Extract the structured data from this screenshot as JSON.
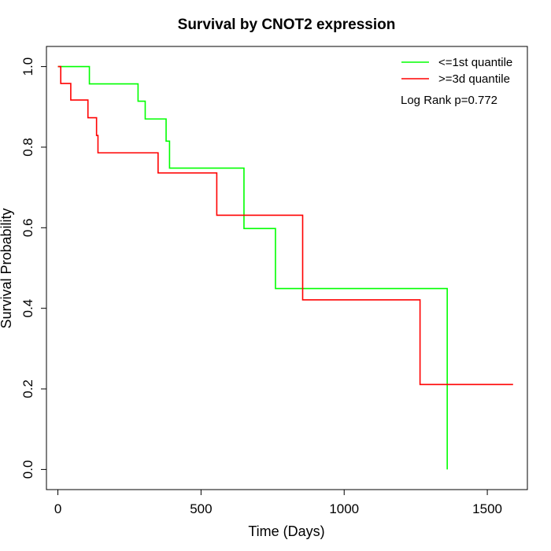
{
  "chart_data": {
    "type": "line",
    "title": "Survival by CNOT2 expression",
    "xlabel": "Time (Days)",
    "ylabel": "Survival Probability",
    "xlim": [
      -40,
      1640
    ],
    "ylim": [
      -0.05,
      1.05
    ],
    "x_ticks": [
      0,
      500,
      1000,
      1500
    ],
    "y_ticks": [
      0.0,
      0.2,
      0.4,
      0.6,
      0.8,
      1.0
    ],
    "x_tick_labels": [
      "0",
      "500",
      "1000",
      "1500"
    ],
    "y_tick_labels": [
      "0.0",
      "0.2",
      "0.4",
      "0.6",
      "0.8",
      "1.0"
    ],
    "grid": false,
    "legend_position": "top-right",
    "annotation": "Log Rank p=0.772",
    "series": [
      {
        "name": "<=1st quantile",
        "color": "#00ff00",
        "steps": [
          [
            0,
            1.0
          ],
          [
            110,
            0.957
          ],
          [
            280,
            0.914
          ],
          [
            305,
            0.87
          ],
          [
            378,
            0.815
          ],
          [
            390,
            0.748
          ],
          [
            650,
            0.598
          ],
          [
            760,
            0.449
          ],
          [
            1360,
            0.0
          ]
        ],
        "end_x": 1360
      },
      {
        "name": ">=3d quantile",
        "color": "#ff0000",
        "steps": [
          [
            0,
            1.0
          ],
          [
            10,
            0.958
          ],
          [
            45,
            0.917
          ],
          [
            105,
            0.873
          ],
          [
            135,
            0.829
          ],
          [
            140,
            0.786
          ],
          [
            350,
            0.736
          ],
          [
            555,
            0.631
          ],
          [
            855,
            0.421
          ],
          [
            1265,
            0.211
          ]
        ],
        "end_x": 1590
      }
    ]
  }
}
